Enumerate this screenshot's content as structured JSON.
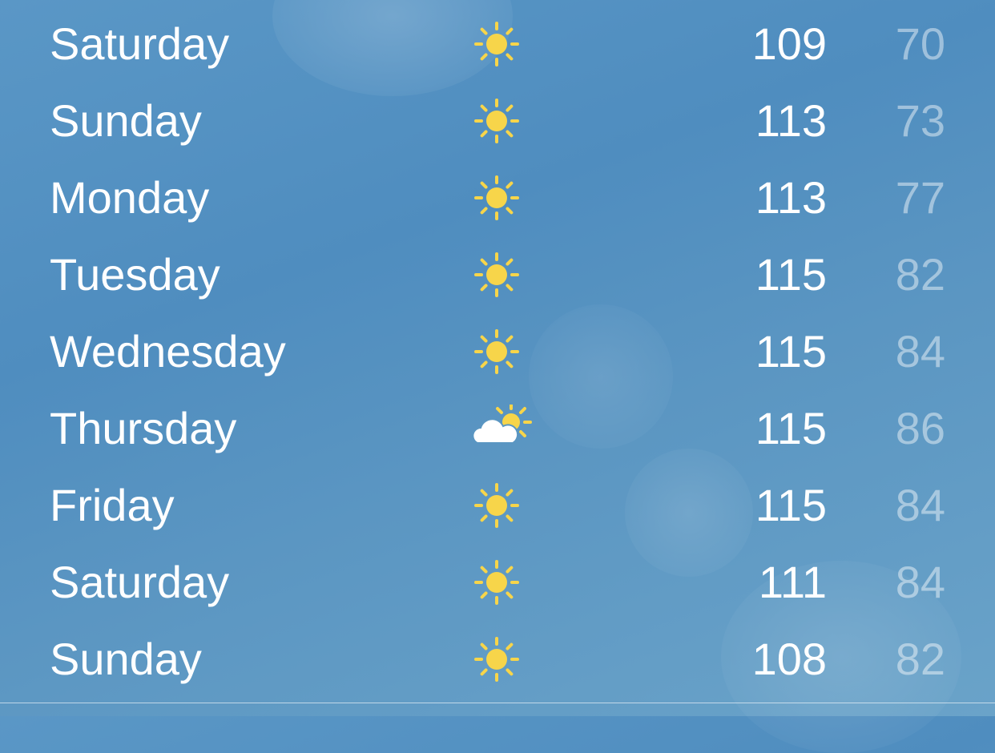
{
  "colors": {
    "sun": "#f7d54a",
    "cloud": "#ffffff",
    "text": "#ffffff",
    "low_text": "rgba(255,255,255,0.45)"
  },
  "forecast": [
    {
      "day": "Saturday",
      "icon": "sun-icon",
      "high": "109",
      "low": "70"
    },
    {
      "day": "Sunday",
      "icon": "sun-icon",
      "high": "113",
      "low": "73"
    },
    {
      "day": "Monday",
      "icon": "sun-icon",
      "high": "113",
      "low": "77"
    },
    {
      "day": "Tuesday",
      "icon": "sun-icon",
      "high": "115",
      "low": "82"
    },
    {
      "day": "Wednesday",
      "icon": "sun-icon",
      "high": "115",
      "low": "84"
    },
    {
      "day": "Thursday",
      "icon": "partly-cloudy-icon",
      "high": "115",
      "low": "86"
    },
    {
      "day": "Friday",
      "icon": "sun-icon",
      "high": "115",
      "low": "84"
    },
    {
      "day": "Saturday",
      "icon": "sun-icon",
      "high": "111",
      "low": "84"
    },
    {
      "day": "Sunday",
      "icon": "sun-icon",
      "high": "108",
      "low": "82"
    }
  ]
}
